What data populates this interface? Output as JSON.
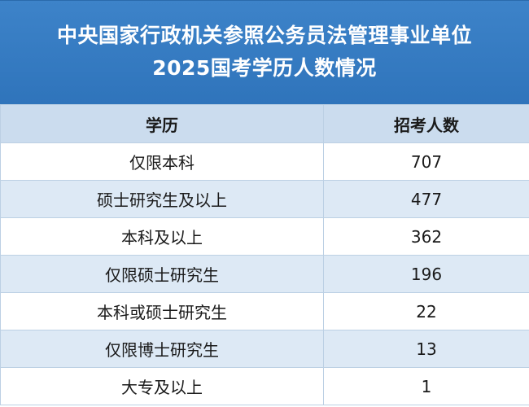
{
  "header": {
    "title_line1": "中央国家行政机关参照公务员法管理事业单位",
    "title_line2": "2025国考学历人数情况"
  },
  "table": {
    "columns": [
      "学历",
      "招考人数"
    ],
    "rows": [
      {
        "education": "仅限本科",
        "count": "707"
      },
      {
        "education": "硕士研究生及以上",
        "count": "477"
      },
      {
        "education": "本科及以上",
        "count": "362"
      },
      {
        "education": "仅限硕士研究生",
        "count": "196"
      },
      {
        "education": "本科或硕士研究生",
        "count": "22"
      },
      {
        "education": "仅限博士研究生",
        "count": "13"
      },
      {
        "education": "大专及以上",
        "count": "1"
      }
    ]
  },
  "colors": {
    "banner": "#3479c1",
    "header_row": "#cbdcee",
    "stripe": "#dde9f5"
  }
}
